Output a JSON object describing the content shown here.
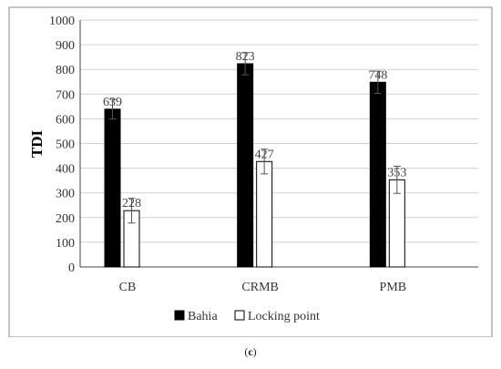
{
  "caption": {
    "open": "(",
    "letter": "c",
    "close": ")"
  },
  "chart_data": {
    "type": "bar",
    "title": "",
    "xlabel": "",
    "ylabel": "TDI",
    "ylim": [
      0,
      1000
    ],
    "ytick_step": 100,
    "yticks": [
      "0",
      "100",
      "200",
      "300",
      "400",
      "500",
      "600",
      "700",
      "800",
      "900",
      "1000"
    ],
    "grid": true,
    "legend_position": "bottom-center",
    "categories": [
      "CB",
      "CRMB",
      "PMB"
    ],
    "series": [
      {
        "name": "Bahia",
        "values": [
          639,
          823,
          748
        ],
        "errors": [
          40,
          45,
          45
        ],
        "color": "#000000"
      },
      {
        "name": "Locking point",
        "values": [
          228,
          427,
          353
        ],
        "errors": [
          50,
          50,
          55
        ],
        "color": "#ffffff"
      }
    ],
    "data_labels": [
      [
        "639",
        "823",
        "748"
      ],
      [
        "228",
        "427",
        "353"
      ]
    ]
  }
}
